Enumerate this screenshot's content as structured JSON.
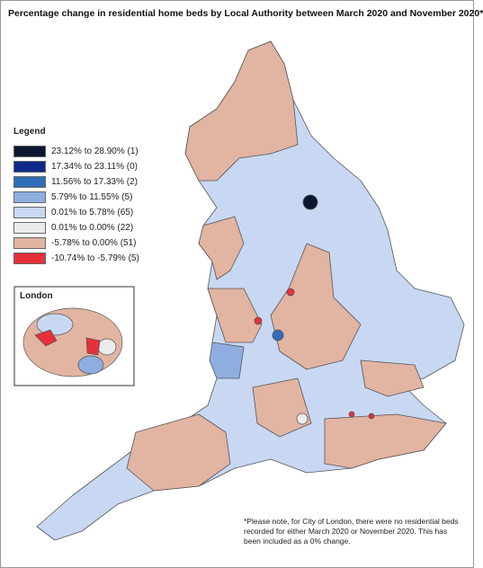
{
  "title": "Percentage change in residential home beds by Local Authority between March 2020 and November 2020*",
  "legend": {
    "title": "Legend",
    "items": [
      {
        "label": "23.12% to 28.90% (1)",
        "color": "#0b1730"
      },
      {
        "label": "17.34% to 23.11% (0)",
        "color": "#0d2a8a"
      },
      {
        "label": "11.56% to 17.33% (2)",
        "color": "#2f6db6"
      },
      {
        "label": "5.79% to 11.55% (5)",
        "color": "#8eaee0"
      },
      {
        "label": "0.01% to 5.78% (65)",
        "color": "#c8d8f3"
      },
      {
        "label": "0.01% to 0.00% (22)",
        "color": "#ebebeb"
      },
      {
        "label": "-5.78% to 0.00% (51)",
        "color": "#e2b4a2"
      },
      {
        "label": "-10.74% to -5.79% (5)",
        "color": "#e6303c"
      }
    ]
  },
  "inset": {
    "title": "London"
  },
  "footnote": "*Please note, for City of London, there were no residential beds recorded for either March 2020 or November 2020. This has been included as a 0% change."
}
